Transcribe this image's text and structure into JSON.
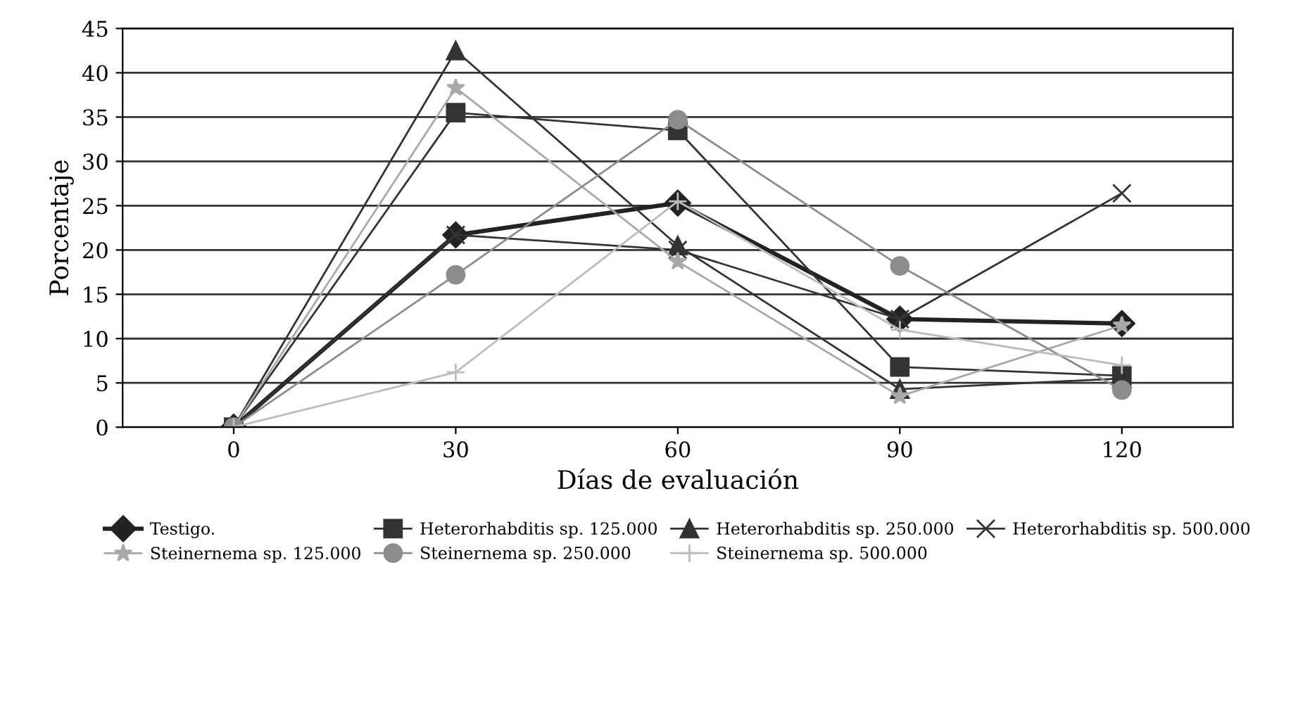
{
  "chart_data": {
    "type": "line",
    "xlabel": "Días de evaluación",
    "ylabel": "Porcentaje",
    "x": [
      0,
      30,
      60,
      90,
      120
    ],
    "xlim": [
      -15,
      135
    ],
    "xticks": [
      0,
      30,
      60,
      90,
      120
    ],
    "ylim": [
      0,
      45
    ],
    "yticks": [
      0,
      5,
      10,
      15,
      20,
      25,
      30,
      35,
      40,
      45
    ],
    "grid": "y",
    "legend": "bottom",
    "series": [
      {
        "name": "Testigo.",
        "color": "#222222",
        "marker": "diamond",
        "values": [
          0,
          21.7,
          25.3,
          12.2,
          11.7
        ]
      },
      {
        "name": "Heterorhabditis sp. 125.000",
        "color": "#333333",
        "marker": "square",
        "values": [
          0,
          35.5,
          33.5,
          6.8,
          5.8
        ]
      },
      {
        "name": "Heterorhabditis sp. 250.000",
        "color": "#333333",
        "marker": "triangle",
        "values": [
          0,
          42.5,
          20.5,
          4.3,
          5.5
        ]
      },
      {
        "name": "Heterorhabditis sp. 500.000",
        "color": "#333333",
        "marker": "cross",
        "values": [
          0,
          21.7,
          20,
          12.2,
          26.4
        ]
      },
      {
        "name": "Steinernema sp. 125.000",
        "color": "#a8a8a8",
        "marker": "star",
        "values": [
          0,
          38.3,
          18.7,
          3.5,
          11.5
        ]
      },
      {
        "name": "Steinernema sp. 250.000",
        "color": "#8c8c8c",
        "marker": "circle",
        "values": [
          0,
          17.2,
          34.7,
          18.2,
          4.2
        ]
      },
      {
        "name": "Steinernema sp. 500.000",
        "color": "#bcbcbc",
        "marker": "plus",
        "values": [
          0,
          6.2,
          25.5,
          11,
          7
        ]
      }
    ]
  }
}
